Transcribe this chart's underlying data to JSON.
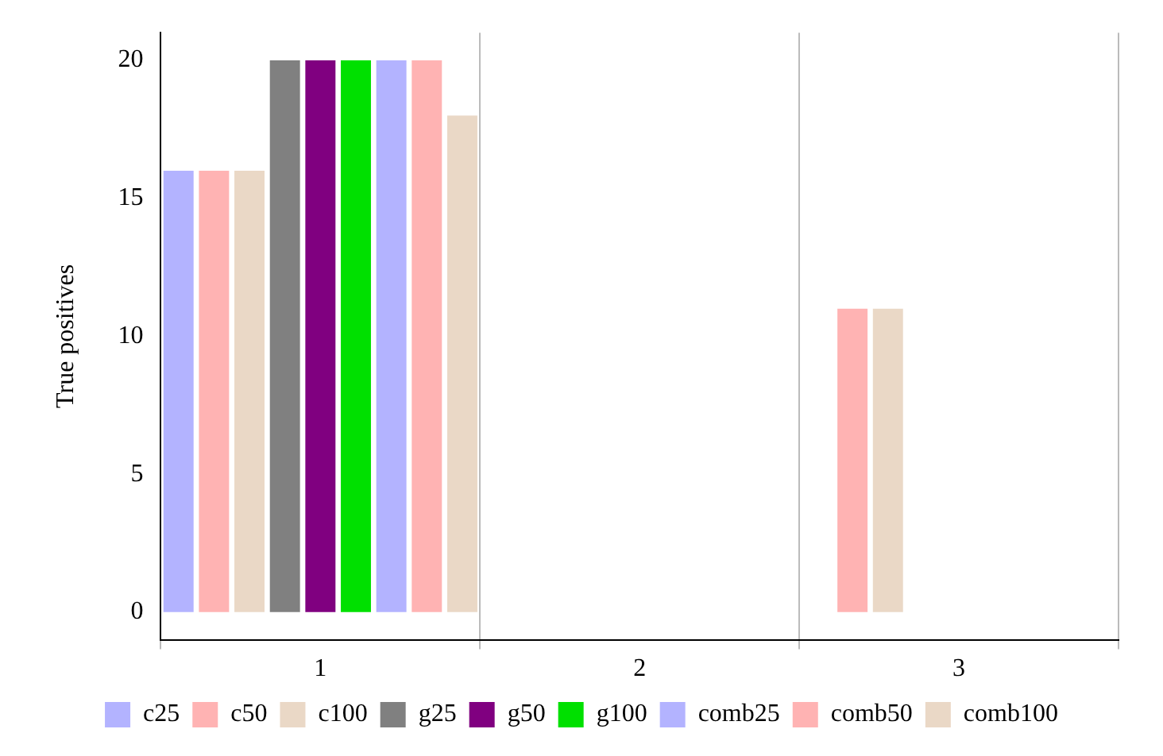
{
  "chart_data": {
    "type": "bar",
    "ylabel": "True positives",
    "categories": [
      "1",
      "2",
      "3"
    ],
    "series": [
      {
        "name": "c25",
        "color": "#b3b3ff",
        "values": [
          16,
          null,
          0
        ]
      },
      {
        "name": "c50",
        "color": "#ffb3b3",
        "values": [
          16,
          null,
          11
        ]
      },
      {
        "name": "c100",
        "color": "#ead8c6",
        "values": [
          16,
          null,
          11
        ]
      },
      {
        "name": "g25",
        "color": "#808080",
        "values": [
          20,
          0,
          0
        ]
      },
      {
        "name": "g50",
        "color": "#800080",
        "values": [
          20,
          0,
          0
        ]
      },
      {
        "name": "g100",
        "color": "#00e000",
        "values": [
          20,
          0,
          0
        ]
      },
      {
        "name": "comb25",
        "color": "#b3b3ff",
        "values": [
          20,
          0,
          0
        ]
      },
      {
        "name": "comb50",
        "color": "#ffb3b3",
        "values": [
          20,
          0,
          0
        ]
      },
      {
        "name": "comb100",
        "color": "#ead8c6",
        "values": [
          18,
          0,
          0
        ]
      }
    ],
    "ylim": [
      -1,
      21
    ],
    "yticks": [
      0,
      5,
      10,
      15,
      20
    ],
    "grid": "x",
    "legend": "bottom"
  }
}
